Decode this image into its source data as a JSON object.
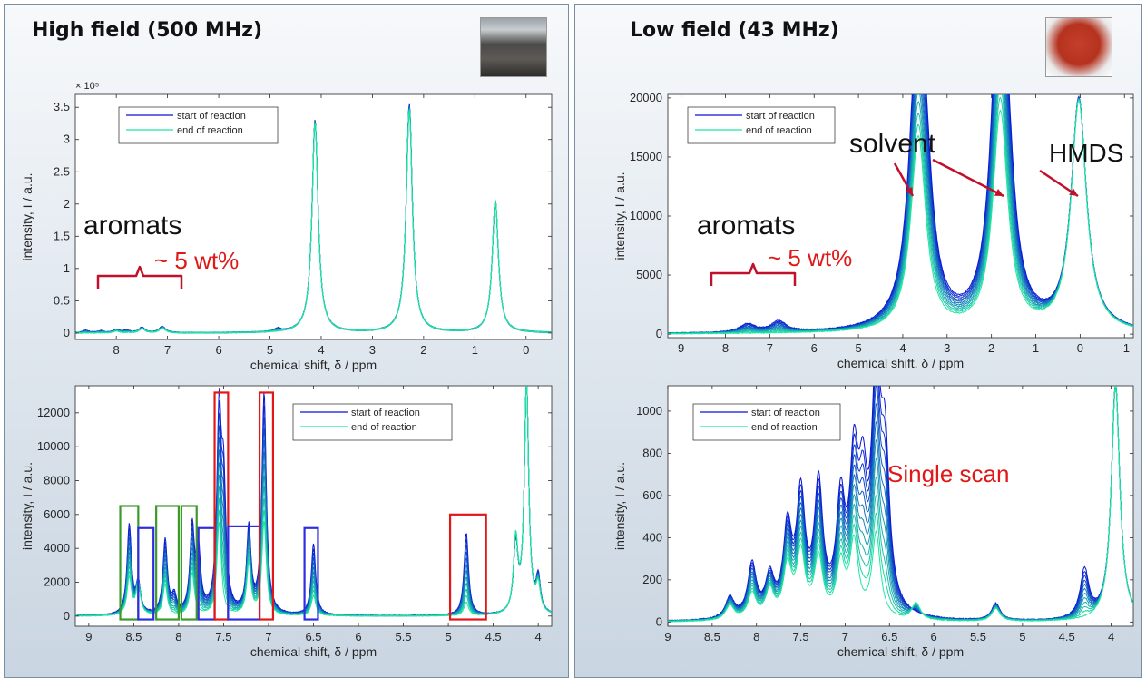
{
  "panels": {
    "left_title": "High field (500 MHz)",
    "right_title": "Low field (43 MHz)"
  },
  "colors": {
    "start": "#0a14d6",
    "end": "#1ee6a0",
    "red": "#e01818",
    "blue_box": "#2e2ee0",
    "green_box": "#3b9a2a",
    "darkred": "#c0102a"
  },
  "chart_data": [
    {
      "type": "line",
      "id": "hf-full",
      "xlabel": "chemical shift,  δ / ppm",
      "ylabel": "intensity,  I / a.u.",
      "xlim": [
        8.8,
        -0.5
      ],
      "ylim": [
        -0.1,
        3.7
      ],
      "x_reversed": true,
      "y_scale_label": "× 10⁵",
      "xticks": [
        8,
        7,
        6,
        5,
        4,
        3,
        2,
        1,
        0
      ],
      "yticks": [
        0,
        0.5,
        1,
        1.5,
        2,
        2.5,
        3,
        3.5
      ],
      "ytick_labels": [
        "0",
        "0.5",
        "1",
        "1.5",
        "2",
        "2.5",
        "3",
        "3.5"
      ],
      "legend": [
        "start of reaction",
        "end of reaction"
      ],
      "series": [
        {
          "name": "start of reaction",
          "peaks": [
            [
              8.6,
              0.04
            ],
            [
              8.3,
              0.03
            ],
            [
              8.0,
              0.05
            ],
            [
              7.8,
              0.04
            ],
            [
              7.5,
              0.08
            ],
            [
              7.1,
              0.1
            ],
            [
              4.85,
              0.05
            ],
            [
              4.12,
              3.3
            ],
            [
              2.28,
              3.55
            ],
            [
              0.6,
              2.05
            ]
          ]
        },
        {
          "name": "end of reaction",
          "peaks": [
            [
              8.0,
              0.03
            ],
            [
              7.5,
              0.06
            ],
            [
              7.1,
              0.07
            ],
            [
              4.12,
              3.25
            ],
            [
              2.28,
              3.45
            ],
            [
              0.6,
              2.05
            ]
          ]
        }
      ],
      "annotations": [
        {
          "text": "aromats"
        },
        {
          "text": "~ 5 wt%"
        }
      ]
    },
    {
      "type": "line",
      "id": "lf-full",
      "xlabel": "chemical shift,  δ / ppm",
      "ylabel": "intensity,  I / a.u.",
      "xlim": [
        9.3,
        -1.2
      ],
      "ylim": [
        -300,
        20300
      ],
      "x_reversed": true,
      "xticks": [
        9,
        8,
        7,
        6,
        5,
        4,
        3,
        2,
        1,
        0,
        -1
      ],
      "yticks": [
        0,
        5000,
        10000,
        15000,
        20000
      ],
      "ytick_labels": [
        "0",
        "5000",
        "10000",
        "15000",
        "20000"
      ],
      "legend": [
        "start of reaction",
        "end of reaction"
      ],
      "series": [
        {
          "name": "start of reaction",
          "peaks": [
            [
              7.5,
              700
            ],
            [
              6.8,
              900
            ],
            [
              3.75,
              6000
            ],
            [
              3.65,
              16000
            ],
            [
              3.5,
              9000
            ],
            [
              1.9,
              7500
            ],
            [
              1.8,
              18800
            ],
            [
              1.65,
              8000
            ],
            [
              0.03,
              19500
            ]
          ]
        },
        {
          "name": "end of reaction",
          "peaks": [
            [
              3.65,
              16500
            ],
            [
              1.8,
              18500
            ],
            [
              0.03,
              19500
            ]
          ]
        }
      ],
      "annotations": [
        {
          "text": "aromats"
        },
        {
          "text": "~ 5 wt%"
        },
        {
          "text": "solvent"
        },
        {
          "text": "HMDS"
        }
      ]
    },
    {
      "type": "line",
      "id": "hf-zoom",
      "xlabel": "chemical shift,  δ / ppm",
      "ylabel": "intensity,  I / a.u.",
      "xlim": [
        9.15,
        3.85
      ],
      "ylim": [
        -600,
        13600
      ],
      "x_reversed": true,
      "xticks": [
        9,
        8.5,
        8,
        7.5,
        7,
        6.5,
        6,
        5.5,
        5,
        4.5,
        4
      ],
      "yticks": [
        0,
        2000,
        4000,
        6000,
        8000,
        10000,
        12000
      ],
      "ytick_labels": [
        "0",
        "2000",
        "4000",
        "6000",
        "8000",
        "10000",
        "12000"
      ],
      "legend": [
        "start of reaction",
        "end of reaction"
      ],
      "series": [
        {
          "name": "start of reaction",
          "peaks": [
            [
              8.55,
              5300
            ],
            [
              8.45,
              1800
            ],
            [
              8.15,
              4400
            ],
            [
              8.05,
              1000
            ],
            [
              7.85,
              5000
            ],
            [
              7.78,
              3500
            ],
            [
              7.55,
              11500
            ],
            [
              7.5,
              7000
            ],
            [
              7.22,
              5000
            ],
            [
              7.05,
              13000
            ],
            [
              6.5,
              4200
            ],
            [
              4.8,
              4900
            ],
            [
              4.25,
              4000
            ],
            [
              4.13,
              13600
            ],
            [
              4.0,
              2000
            ]
          ]
        },
        {
          "name": "end of reaction",
          "peaks": [
            [
              8.55,
              2200
            ],
            [
              8.45,
              1900
            ],
            [
              8.15,
              1800
            ],
            [
              7.85,
              2500
            ],
            [
              7.55,
              5500
            ],
            [
              7.22,
              3000
            ],
            [
              7.05,
              5500
            ],
            [
              6.5,
              1200
            ],
            [
              4.8,
              800
            ],
            [
              4.25,
              4300
            ],
            [
              4.13,
              13600
            ],
            [
              4.0,
              1500
            ]
          ]
        }
      ],
      "boxes": [
        {
          "color": "green",
          "x": [
            8.65,
            8.45
          ],
          "y": [
            -200,
            6500
          ]
        },
        {
          "color": "blue",
          "x": [
            8.45,
            8.28
          ],
          "y": [
            -200,
            5200
          ]
        },
        {
          "color": "green",
          "x": [
            8.25,
            8.0
          ],
          "y": [
            -200,
            6500
          ]
        },
        {
          "color": "green",
          "x": [
            7.97,
            7.8
          ],
          "y": [
            -200,
            6500
          ]
        },
        {
          "color": "blue",
          "x": [
            7.78,
            7.6
          ],
          "y": [
            -200,
            5200
          ]
        },
        {
          "color": "red",
          "x": [
            7.6,
            7.45
          ],
          "y": [
            -200,
            13200
          ]
        },
        {
          "color": "blue",
          "x": [
            7.45,
            7.1
          ],
          "y": [
            -200,
            5300
          ]
        },
        {
          "color": "red",
          "x": [
            7.1,
            6.95
          ],
          "y": [
            -200,
            13200
          ]
        },
        {
          "color": "blue",
          "x": [
            6.6,
            6.45
          ],
          "y": [
            -200,
            5200
          ]
        },
        {
          "color": "red",
          "x": [
            4.98,
            4.58
          ],
          "y": [
            -200,
            6000
          ]
        }
      ]
    },
    {
      "type": "line",
      "id": "lf-zoom",
      "xlabel": "chemical shift,  δ / ppm",
      "ylabel": "intensity,  I / a.u.",
      "xlim": [
        9.0,
        3.75
      ],
      "ylim": [
        -20,
        1120
      ],
      "x_reversed": true,
      "xticks": [
        9,
        8.5,
        8,
        7.5,
        7,
        6.5,
        6,
        5.5,
        5,
        4.5,
        4
      ],
      "yticks": [
        0,
        200,
        400,
        600,
        800,
        1000
      ],
      "ytick_labels": [
        "0",
        "200",
        "400",
        "600",
        "800",
        "1000"
      ],
      "legend": [
        "start of reaction",
        "end of reaction"
      ],
      "series": [
        {
          "name": "start of reaction",
          "peaks": [
            [
              8.3,
              100
            ],
            [
              8.05,
              250
            ],
            [
              7.85,
              180
            ],
            [
              7.65,
              400
            ],
            [
              7.5,
              550
            ],
            [
              7.3,
              600
            ],
            [
              7.05,
              500
            ],
            [
              6.9,
              650
            ],
            [
              6.8,
              500
            ],
            [
              6.65,
              1090
            ],
            [
              6.55,
              700
            ],
            [
              5.3,
              80
            ],
            [
              4.3,
              230
            ],
            [
              3.95,
              1120
            ]
          ]
        },
        {
          "name": "end of reaction",
          "peaks": [
            [
              8.3,
              70
            ],
            [
              8.05,
              120
            ],
            [
              7.85,
              130
            ],
            [
              7.65,
              240
            ],
            [
              7.5,
              300
            ],
            [
              7.3,
              280
            ],
            [
              7.05,
              250
            ],
            [
              6.9,
              350
            ],
            [
              6.65,
              400
            ],
            [
              6.2,
              80
            ],
            [
              5.3,
              60
            ],
            [
              3.95,
              1120
            ]
          ]
        }
      ],
      "annotations": [
        {
          "text": "Single scan"
        }
      ]
    }
  ]
}
